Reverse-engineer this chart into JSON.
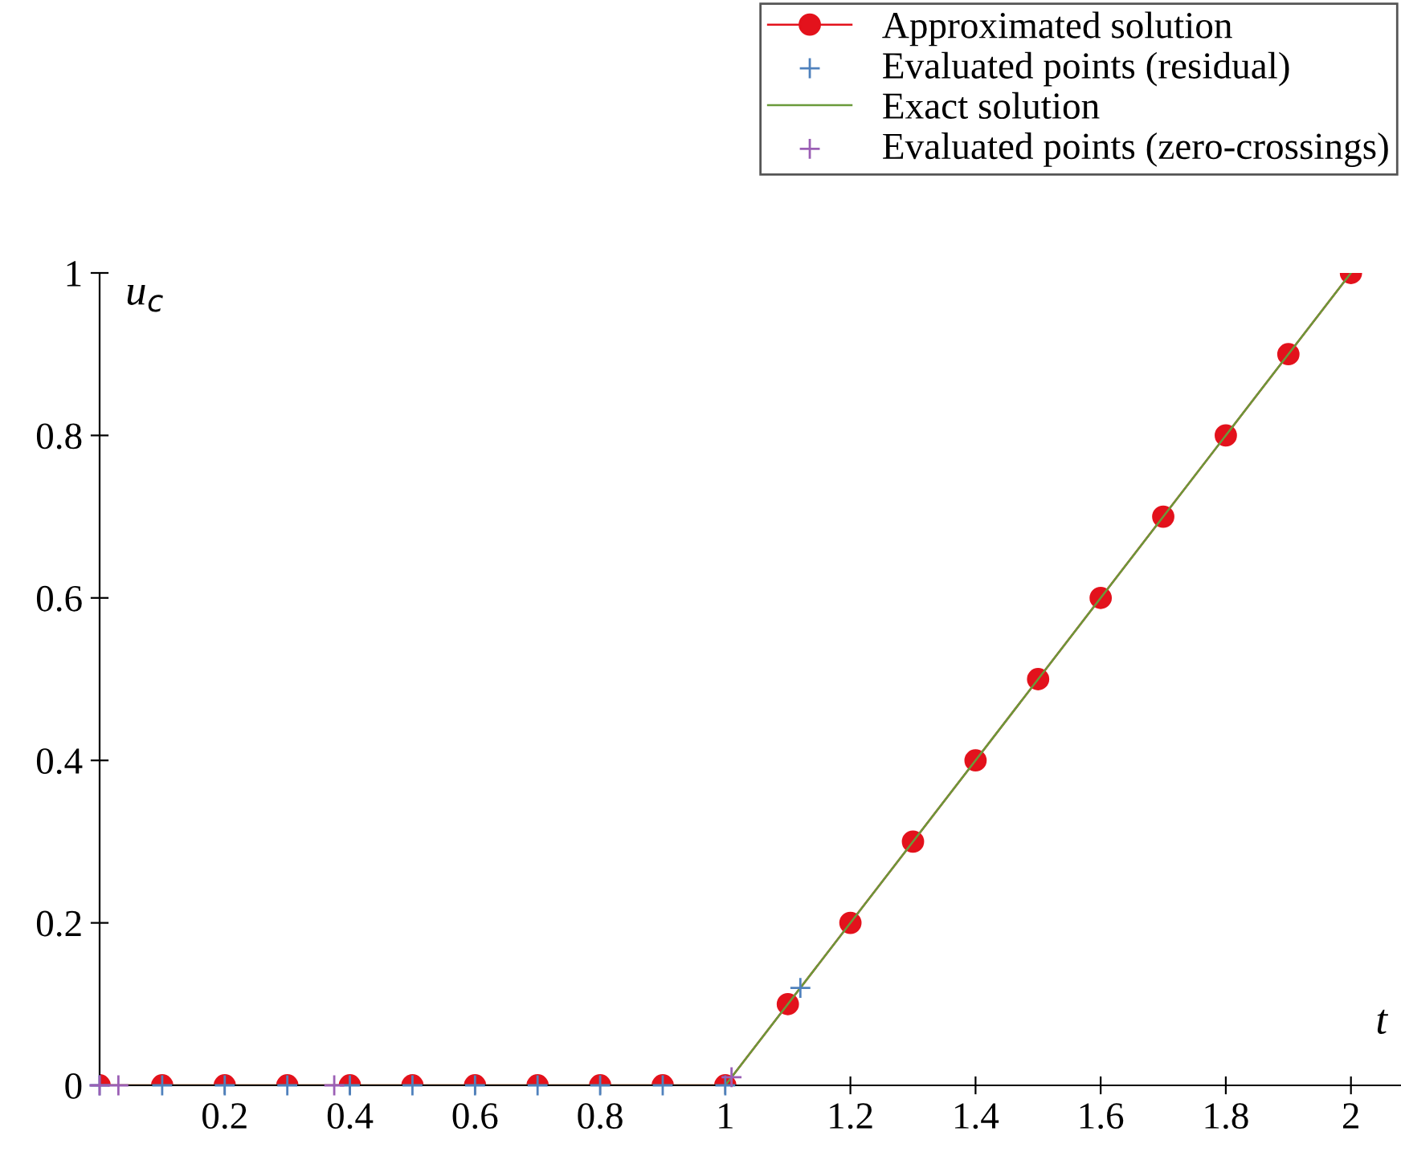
{
  "chart_data": {
    "type": "line",
    "xlabel": "t",
    "ylabel": "u$_{c}$",
    "xlim": [
      0,
      2.08
    ],
    "ylim": [
      0,
      1
    ],
    "xticks": [
      0.2,
      0.4,
      0.6,
      0.8,
      1,
      1.2,
      1.4,
      1.6,
      1.8,
      2
    ],
    "yticks": [
      0,
      0.2,
      0.4,
      0.6,
      0.8,
      1
    ],
    "grid": false,
    "legend": "top right",
    "series": [
      {
        "name": "Approximated solution",
        "marker": "circle",
        "color": "#e3121c",
        "x": [
          0,
          0.1,
          0.2,
          0.3,
          0.4,
          0.5,
          0.6,
          0.7,
          0.8,
          0.9,
          1.0,
          1.1,
          1.2,
          1.3,
          1.4,
          1.5,
          1.6,
          1.7,
          1.8,
          1.9,
          2.0
        ],
        "values": [
          0,
          0,
          0,
          0,
          0,
          0,
          0,
          0,
          0,
          0,
          0,
          0.1,
          0.2,
          0.3,
          0.4,
          0.5,
          0.6,
          0.7,
          0.8,
          0.9,
          1.0
        ]
      },
      {
        "name": "Evaluated points (residual)",
        "type": "scatter",
        "marker": "cross",
        "color": "#4f81bd",
        "x": [
          0,
          0.1,
          0.2,
          0.3,
          0.4,
          0.5,
          0.6,
          0.7,
          0.8,
          0.9,
          1.0,
          1.12
        ],
        "values": [
          0,
          0,
          0,
          0,
          0,
          0,
          0,
          0,
          0,
          0,
          0,
          0.12
        ]
      },
      {
        "name": "Exact solution",
        "marker": "none",
        "color": "#6a9a3a",
        "x": [
          0,
          1,
          2
        ],
        "values": [
          0,
          0,
          1
        ]
      },
      {
        "name": "Evaluated points (zero-crossings)",
        "type": "scatter",
        "marker": "cross",
        "color": "#9b5fb5",
        "x": [
          0,
          0.03,
          0.375,
          1.01
        ],
        "values": [
          0,
          0,
          0,
          0.01
        ]
      }
    ]
  }
}
